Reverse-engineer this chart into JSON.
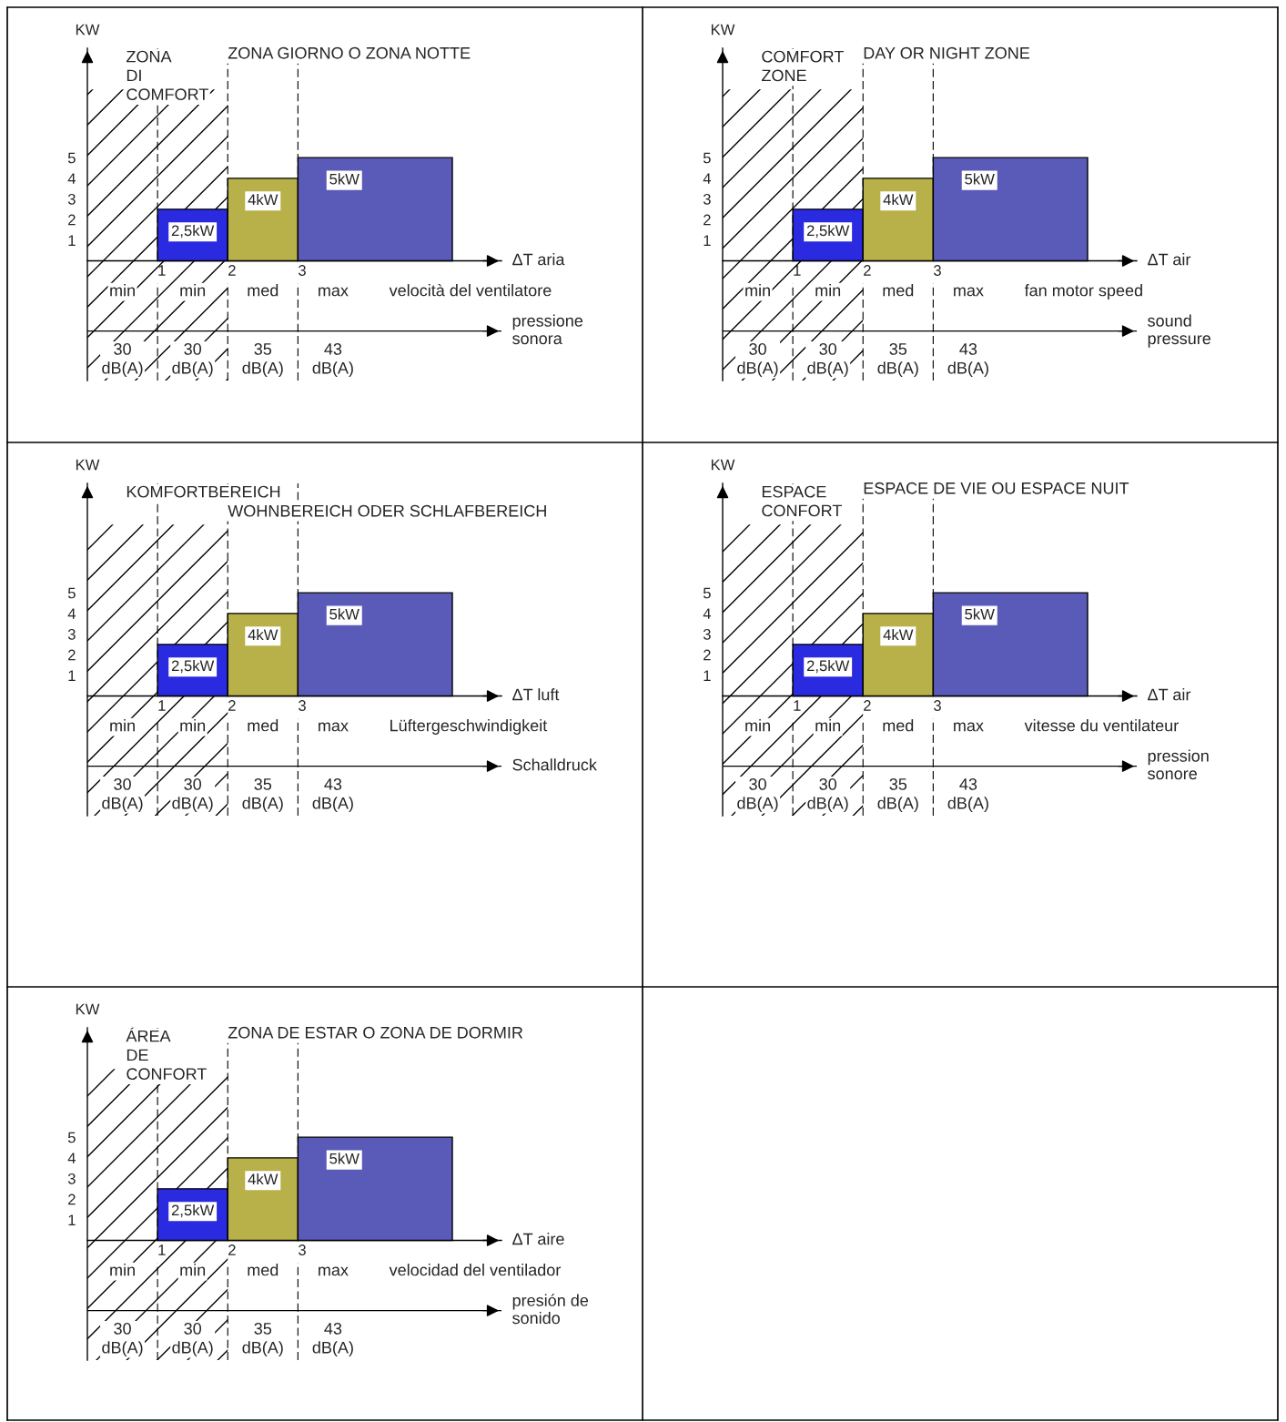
{
  "chart_data": [
    {
      "type": "histogram",
      "title": "ZONA GIORNO O ZONA NOTTE",
      "ylabel": "KW",
      "xlabel": "ΔT aria",
      "bins": [
        1,
        2,
        3,
        5.2
      ],
      "values": [
        2.5,
        4,
        5
      ],
      "colors": [
        "#2a2ae0",
        "#b8b048",
        "#5a5ab8"
      ],
      "value_labels": [
        "2,5kW",
        "4kW",
        "5kW"
      ],
      "xlim": [
        0,
        5.9
      ],
      "ylim": [
        -5.8,
        10.3
      ],
      "xticks": [
        1,
        2,
        3
      ],
      "yticks": [
        1,
        2,
        3,
        4,
        5
      ],
      "grid": "x",
      "bands": [
        {
          "axis": "x",
          "from": 0,
          "to": 2
        }
      ],
      "ref_lines": [
        {
          "axis": "y",
          "value": -3.4,
          "label": "pressione\nsonora"
        }
      ],
      "annotations": [
        "ZONA\nDI\nCOMFORT",
        "min",
        "min",
        "med",
        "max",
        "velocità del ventilatore",
        "30\ndB(A)",
        "30\ndB(A)",
        "35\ndB(A)",
        "43\ndB(A)"
      ]
    },
    {
      "type": "histogram",
      "title": "DAY OR NIGHT ZONE",
      "ylabel": "KW",
      "xlabel": "ΔT air",
      "bins": [
        1,
        2,
        3,
        5.2
      ],
      "values": [
        2.5,
        4,
        5
      ],
      "colors": [
        "#2a2ae0",
        "#b8b048",
        "#5a5ab8"
      ],
      "value_labels": [
        "2,5kW",
        "4kW",
        "5kW"
      ],
      "xlim": [
        0,
        5.9
      ],
      "ylim": [
        -5.8,
        10.3
      ],
      "xticks": [
        1,
        2,
        3
      ],
      "yticks": [
        1,
        2,
        3,
        4,
        5
      ],
      "grid": "x",
      "bands": [
        {
          "axis": "x",
          "from": 0,
          "to": 2
        }
      ],
      "ref_lines": [
        {
          "axis": "y",
          "value": -3.4,
          "label": "sound\npressure"
        }
      ],
      "annotations": [
        "COMFORT\nZONE",
        "min",
        "min",
        "med",
        "max",
        "fan motor speed",
        "30\ndB(A)",
        "30\ndB(A)",
        "35\ndB(A)",
        "43\ndB(A)"
      ]
    },
    {
      "type": "histogram",
      "title": "WOHNBEREICH ODER SCHLAFBEREICH",
      "ylabel": "KW",
      "xlabel": "ΔT luft",
      "bins": [
        1,
        2,
        3,
        5.2
      ],
      "values": [
        2.5,
        4,
        5
      ],
      "colors": [
        "#2a2ae0",
        "#b8b048",
        "#5a5ab8"
      ],
      "value_labels": [
        "2,5kW",
        "4kW",
        "5kW"
      ],
      "xlim": [
        0,
        5.9
      ],
      "ylim": [
        -5.8,
        10.3
      ],
      "xticks": [
        1,
        2,
        3
      ],
      "yticks": [
        1,
        2,
        3,
        4,
        5
      ],
      "grid": "x",
      "bands": [
        {
          "axis": "x",
          "from": 0,
          "to": 2
        }
      ],
      "ref_lines": [
        {
          "axis": "y",
          "value": -3.4,
          "label": "Schalldruck"
        }
      ],
      "annotations": [
        "KOMFORTBEREICH",
        "min",
        "min",
        "med",
        "max",
        "Lüftergeschwindigkeit",
        "30\ndB(A)",
        "30\ndB(A)",
        "35\ndB(A)",
        "43\ndB(A)"
      ]
    },
    {
      "type": "histogram",
      "title": "ESPACE DE VIE OU ESPACE NUIT",
      "ylabel": "KW",
      "xlabel": "ΔT air",
      "bins": [
        1,
        2,
        3,
        5.2
      ],
      "values": [
        2.5,
        4,
        5
      ],
      "colors": [
        "#2a2ae0",
        "#b8b048",
        "#5a5ab8"
      ],
      "value_labels": [
        "2,5kW",
        "4kW",
        "5kW"
      ],
      "xlim": [
        0,
        5.9
      ],
      "ylim": [
        -5.8,
        10.3
      ],
      "xticks": [
        1,
        2,
        3
      ],
      "yticks": [
        1,
        2,
        3,
        4,
        5
      ],
      "grid": "x",
      "bands": [
        {
          "axis": "x",
          "from": 0,
          "to": 2
        }
      ],
      "ref_lines": [
        {
          "axis": "y",
          "value": -3.4,
          "label": "pression\nsonore"
        }
      ],
      "annotations": [
        "ESPACE\nCONFORT",
        "min",
        "min",
        "med",
        "max",
        "vitesse du ventilateur",
        "30\ndB(A)",
        "30\ndB(A)",
        "35\ndB(A)",
        "43\ndB(A)"
      ]
    },
    {
      "type": "histogram",
      "title": "ZONA DE ESTAR O ZONA DE DORMIR",
      "ylabel": "KW",
      "xlabel": "ΔT aire",
      "bins": [
        1,
        2,
        3,
        5.2
      ],
      "values": [
        2.5,
        4,
        5
      ],
      "colors": [
        "#2a2ae0",
        "#b8b048",
        "#5a5ab8"
      ],
      "value_labels": [
        "2,5kW",
        "4kW",
        "5kW"
      ],
      "xlim": [
        0,
        5.9
      ],
      "ylim": [
        -5.8,
        10.3
      ],
      "xticks": [
        1,
        2,
        3
      ],
      "yticks": [
        1,
        2,
        3,
        4,
        5
      ],
      "grid": "x",
      "bands": [
        {
          "axis": "x",
          "from": 0,
          "to": 2
        }
      ],
      "ref_lines": [
        {
          "axis": "y",
          "value": -3.4,
          "label": "presión de\nsonido"
        }
      ],
      "annotations": [
        "ÁREA\nDE\nCONFORT",
        "min",
        "min",
        "med",
        "max",
        "velocidad del ventilador",
        "30\ndB(A)",
        "30\ndB(A)",
        "35\ndB(A)",
        "43\ndB(A)"
      ]
    }
  ]
}
